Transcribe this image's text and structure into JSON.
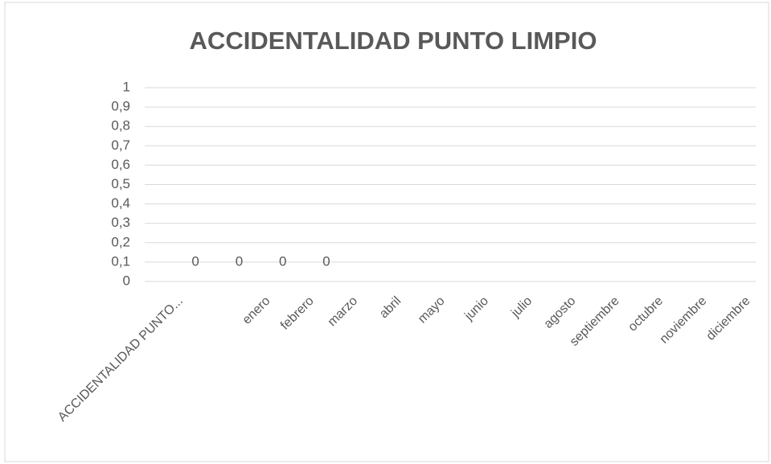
{
  "chart_data": {
    "type": "line",
    "title": "ACCIDENTALIDAD PUNTO LIMPIO",
    "categories": [
      "ACCIDENTALIDAD PUNTO...",
      null,
      "enero",
      "febrero",
      "marzo",
      "abril",
      "mayo",
      "junio",
      "julio",
      "agosto",
      "septiembre",
      "octubre",
      "noviembre",
      "diciembre"
    ],
    "series": [
      {
        "name": "ACCIDENTALIDAD PUNTO LIMPIO",
        "values": [
          0,
          0,
          0,
          0,
          null,
          null,
          null,
          null,
          null,
          null,
          null,
          null,
          null,
          null
        ]
      }
    ],
    "ylim": [
      0,
      1
    ],
    "yticks": [
      0,
      {
        "value": 0.1,
        "label": "0,1"
      },
      {
        "value": 0.2,
        "label": "0,2"
      },
      {
        "value": 0.3,
        "label": "0,3"
      },
      {
        "value": 0.4,
        "label": "0,4"
      },
      {
        "value": 0.5,
        "label": "0,5"
      },
      {
        "value": 0.6,
        "label": "0,6"
      },
      {
        "value": 0.7,
        "label": "0,7"
      },
      {
        "value": 0.8,
        "label": "0,8"
      },
      {
        "value": 0.9,
        "label": "0,9"
      },
      1
    ],
    "grid": true
  }
}
